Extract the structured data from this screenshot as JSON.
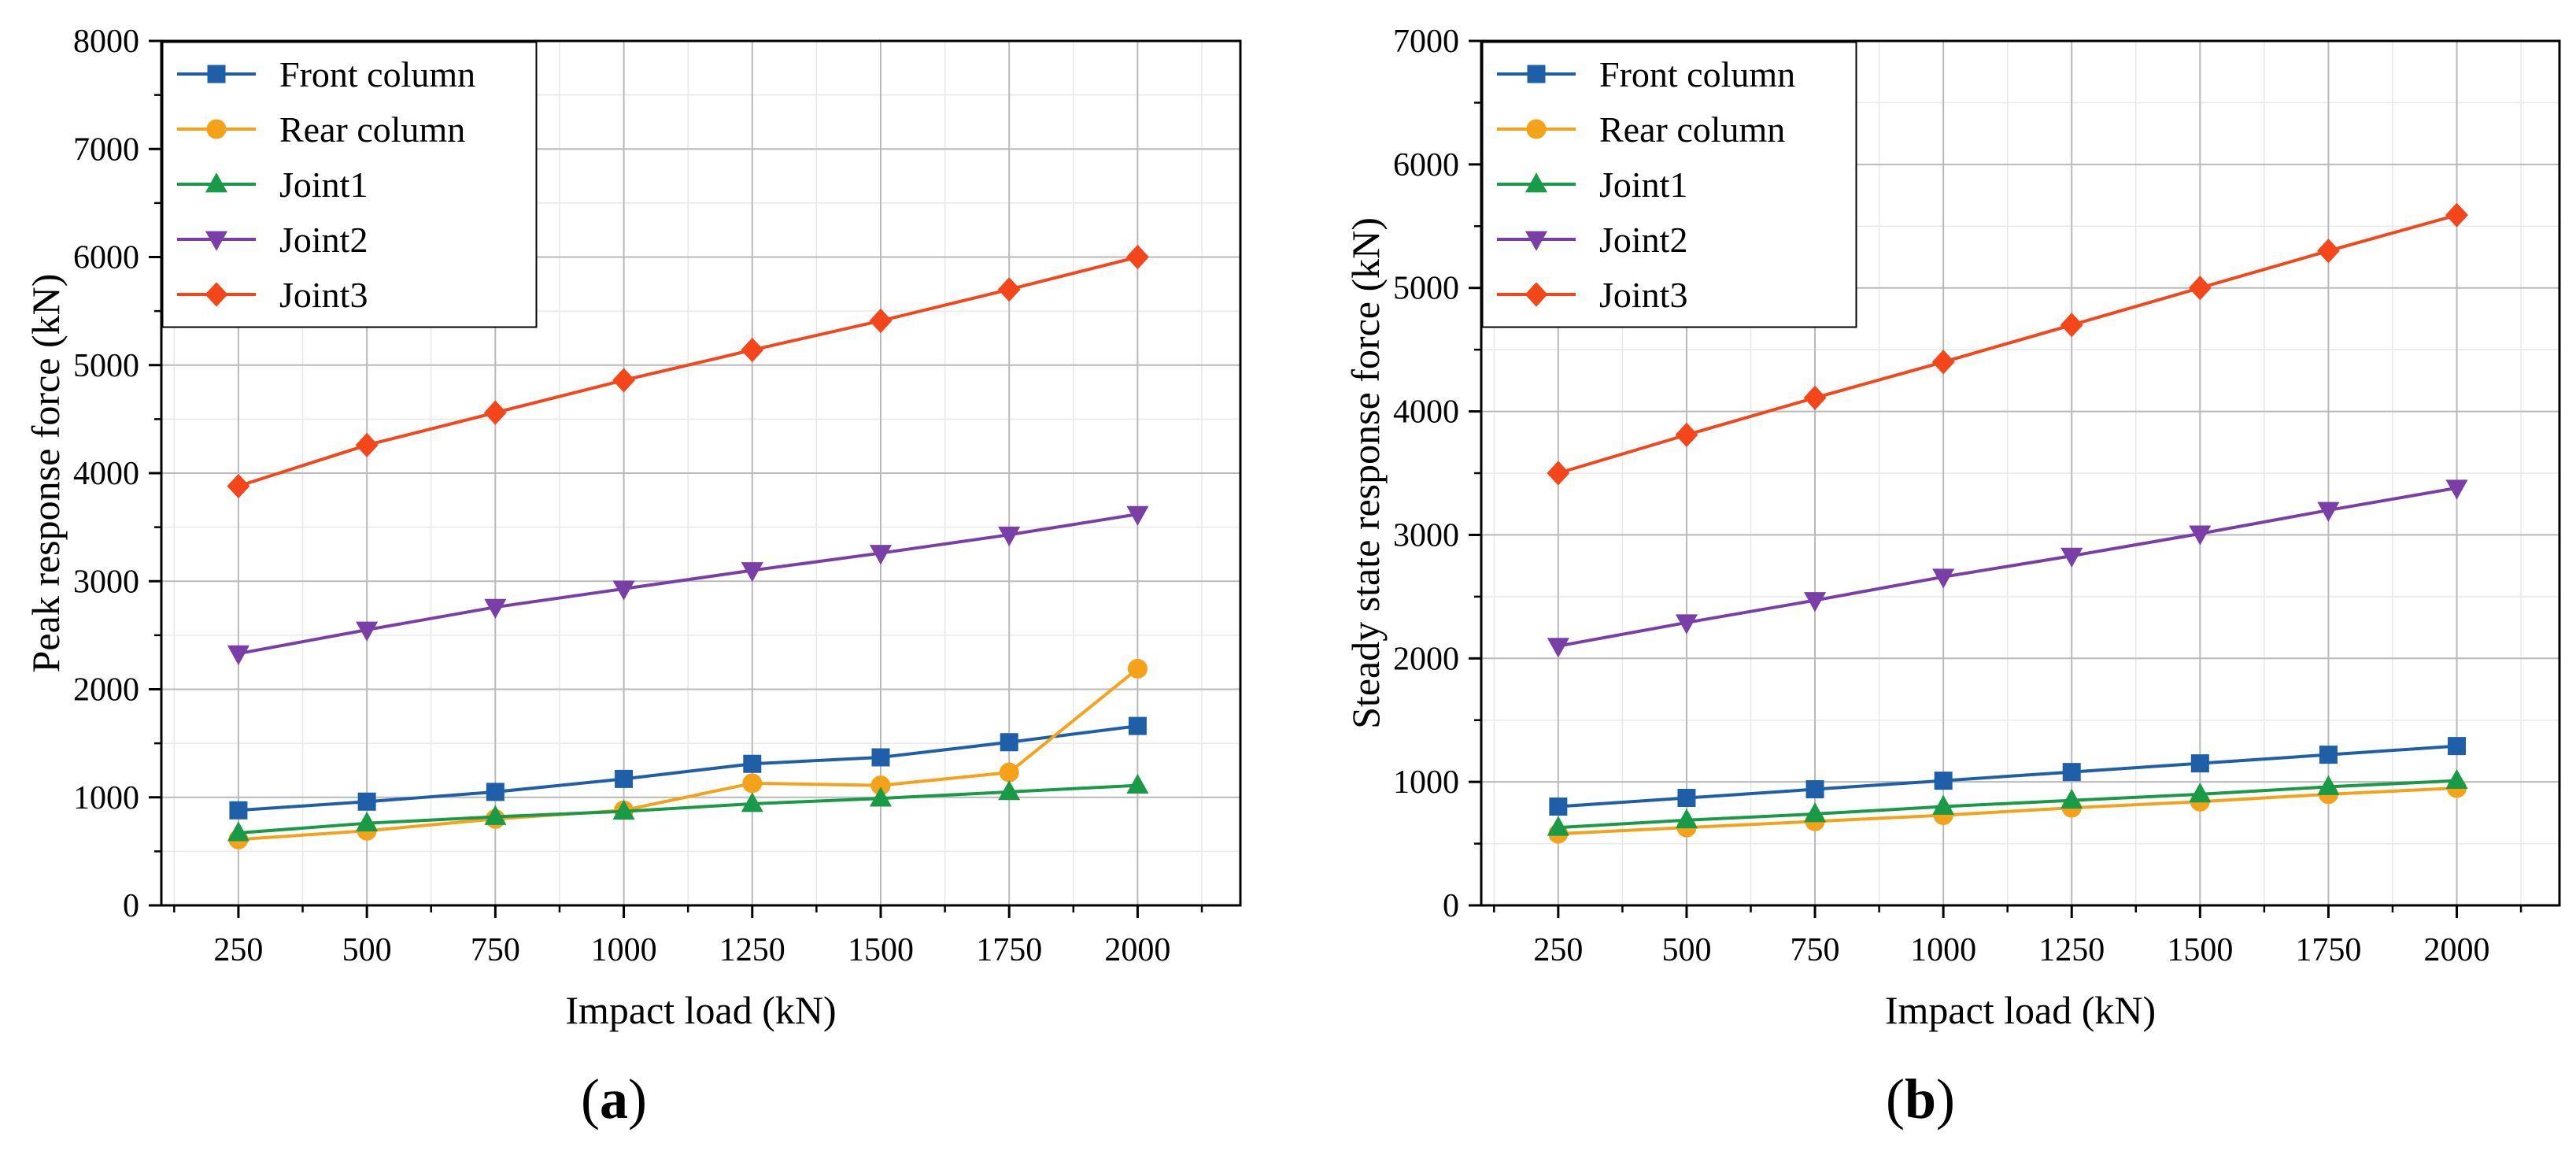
{
  "chart_data": [
    {
      "type": "line",
      "panel_label": "(a)",
      "xlabel": "Impact load (kN)",
      "ylabel": "Peak response force (kN)",
      "x": [
        250,
        500,
        750,
        1000,
        1250,
        1500,
        1750,
        2000
      ],
      "xticks": [
        250,
        500,
        750,
        1000,
        1250,
        1500,
        1750,
        2000
      ],
      "xlim": [
        100,
        2200
      ],
      "ylim": [
        0,
        8000
      ],
      "yticks": [
        0,
        1000,
        2000,
        3000,
        4000,
        5000,
        6000,
        7000,
        8000
      ],
      "grid": true,
      "legend": "top-left",
      "series": [
        {
          "name": "Front column",
          "color": "#1f5fa8",
          "marker": "square",
          "values": [
            880,
            960,
            1050,
            1170,
            1310,
            1370,
            1510,
            1660
          ]
        },
        {
          "name": "Rear column",
          "color": "#f5a21b",
          "marker": "circle",
          "values": [
            610,
            690,
            800,
            880,
            1130,
            1110,
            1230,
            2190
          ]
        },
        {
          "name": "Joint1",
          "color": "#189a47",
          "marker": "triangle-up",
          "values": [
            670,
            760,
            820,
            870,
            940,
            990,
            1050,
            1110
          ]
        },
        {
          "name": "Joint2",
          "color": "#7a3fa6",
          "marker": "triangle-down",
          "values": [
            2330,
            2550,
            2760,
            2930,
            3100,
            3260,
            3430,
            3620
          ]
        },
        {
          "name": "Joint3",
          "color": "#f3461b",
          "marker": "diamond",
          "values": [
            3880,
            4260,
            4560,
            4860,
            5140,
            5410,
            5700,
            6000
          ]
        }
      ]
    },
    {
      "type": "line",
      "panel_label": "(b)",
      "xlabel": "Impact load (kN)",
      "ylabel": "Steady state response force (kN)",
      "x": [
        250,
        500,
        750,
        1000,
        1250,
        1500,
        1750,
        2000
      ],
      "xticks": [
        250,
        500,
        750,
        1000,
        1250,
        1500,
        1750,
        2000
      ],
      "xlim": [
        100,
        2200
      ],
      "ylim": [
        0,
        7000
      ],
      "yticks": [
        0,
        1000,
        2000,
        3000,
        4000,
        5000,
        6000,
        7000
      ],
      "grid": true,
      "legend": "top-left",
      "series": [
        {
          "name": "Front column",
          "color": "#1f5fa8",
          "marker": "square",
          "values": [
            800,
            870,
            940,
            1010,
            1080,
            1150,
            1220,
            1290
          ]
        },
        {
          "name": "Rear column",
          "color": "#f5a21b",
          "marker": "circle",
          "values": [
            580,
            630,
            680,
            730,
            790,
            840,
            900,
            950
          ]
        },
        {
          "name": "Joint1",
          "color": "#189a47",
          "marker": "triangle-up",
          "values": [
            630,
            690,
            740,
            800,
            850,
            900,
            960,
            1010
          ]
        },
        {
          "name": "Joint2",
          "color": "#7a3fa6",
          "marker": "triangle-down",
          "values": [
            2100,
            2290,
            2470,
            2660,
            2830,
            3010,
            3200,
            3380
          ]
        },
        {
          "name": "Joint3",
          "color": "#f3461b",
          "marker": "diamond",
          "values": [
            3500,
            3810,
            4110,
            4400,
            4700,
            5000,
            5300,
            5590
          ]
        }
      ]
    }
  ]
}
